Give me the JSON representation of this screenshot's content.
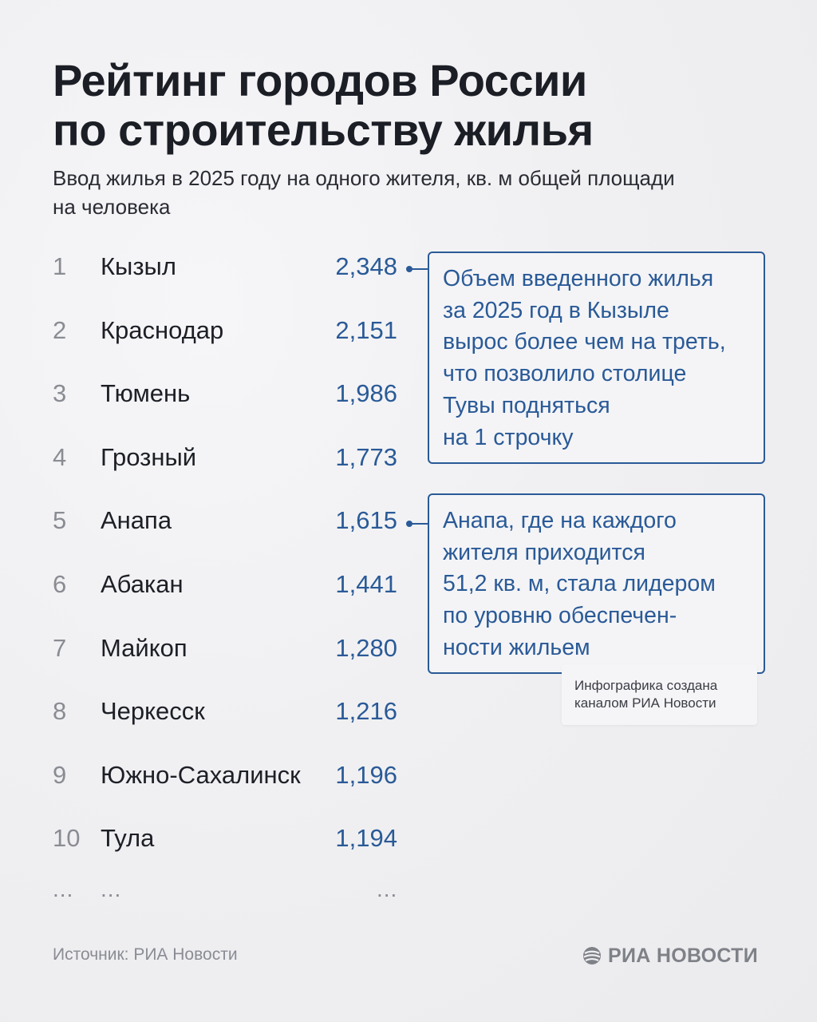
{
  "title": {
    "line1": "Рейтинг городов России",
    "line2": "по строительству жилья"
  },
  "subtitle": {
    "line1": "Ввод жилья в 2025 году на одного жителя, кв. м общей площади",
    "line2": "на человека"
  },
  "ranking": [
    {
      "rank": "1",
      "city": "Кызыл",
      "value": "2,348"
    },
    {
      "rank": "2",
      "city": "Краснодар",
      "value": "2,151"
    },
    {
      "rank": "3",
      "city": "Тюмень",
      "value": "1,986"
    },
    {
      "rank": "4",
      "city": "Грозный",
      "value": "1,773"
    },
    {
      "rank": "5",
      "city": "Анапа",
      "value": "1,615"
    },
    {
      "rank": "6",
      "city": "Абакан",
      "value": "1,441"
    },
    {
      "rank": "7",
      "city": "Майкоп",
      "value": "1,280"
    },
    {
      "rank": "8",
      "city": "Черкесск",
      "value": "1,216"
    },
    {
      "rank": "9",
      "city": "Южно-Сахалинск",
      "value": "1,196"
    },
    {
      "rank": "10",
      "city": "Тула",
      "value": "1,194"
    }
  ],
  "continuation": {
    "rank": "...",
    "city": "...",
    "value": "..."
  },
  "callouts": {
    "kyzyl": {
      "lines": [
        "Объем введенного жилья",
        "за 2025 год в Кызыле",
        "вырос более чем на треть,",
        "что позволило столице",
        "Тувы подняться",
        "на 1 строчку"
      ]
    },
    "anapa": {
      "lines": [
        "Анапа, где на каждого",
        "жителя приходится",
        "51,2 кв. м, стала лидером",
        "по уровню обеспечен-",
        "ности жильем"
      ]
    }
  },
  "credit": {
    "line1": "Инфографика создана",
    "line2": "каналом РИА Новости"
  },
  "footer": {
    "source": "Источник: РИА Новости",
    "brand": "РИА НОВОСТИ",
    "brand_icon": "ria-globe-icon"
  },
  "colors": {
    "accent": "#2a5a97",
    "text": "#1c1e26",
    "muted": "#8a8c93",
    "background": "#efeff1"
  }
}
